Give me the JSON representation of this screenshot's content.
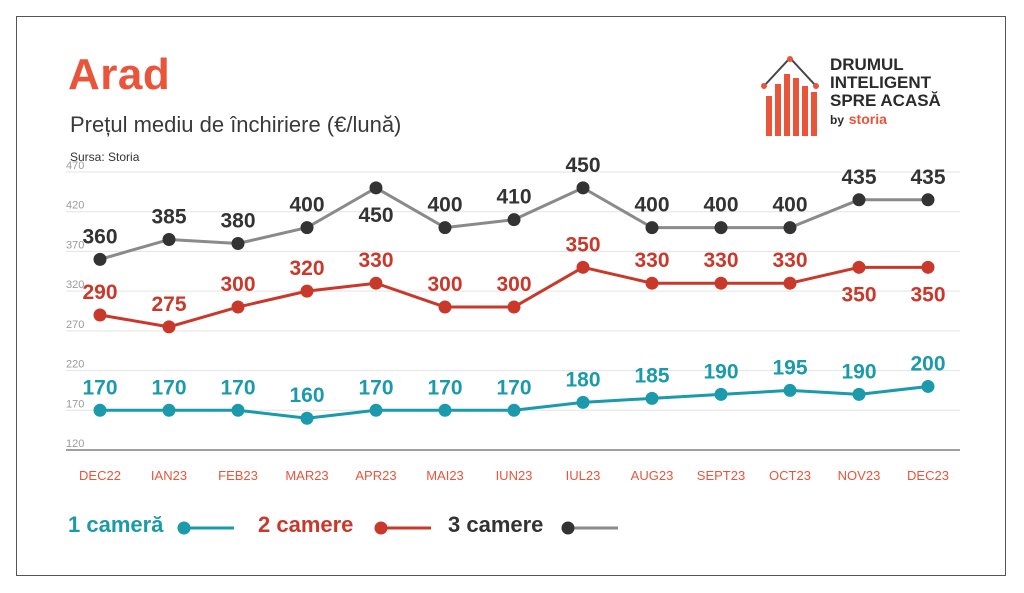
{
  "header": {
    "title": "Arad",
    "subtitle": "Prețul mediu de închiriere (€/lună)",
    "source": "Sursa: Storia"
  },
  "logo": {
    "line1": "DRUMUL",
    "line2": "INTELIGENT",
    "line3": "SPRE ACASĂ",
    "by": "by",
    "brand": "storia"
  },
  "colors": {
    "accent": "#e8553b",
    "series1": "#1a9aab",
    "series2": "#c9392b",
    "series3": "#8a8a8a",
    "series3_marker": "#333333",
    "grid": "#e3e3e3",
    "axis": "#666666"
  },
  "chart_data": {
    "type": "line",
    "categories": [
      "DEC22",
      "IAN23",
      "FEB23",
      "MAR23",
      "APR23",
      "MAI23",
      "IUN23",
      "IUL23",
      "AUG23",
      "SEPT23",
      "OCT23",
      "NOV23",
      "DEC23"
    ],
    "y_ticks": [
      120,
      170,
      220,
      270,
      320,
      370,
      420,
      470
    ],
    "ylim": [
      120,
      470
    ],
    "grid": true,
    "legend_position": "bottom",
    "series": [
      {
        "name": "1 cameră",
        "values": [
          170,
          170,
          170,
          160,
          170,
          170,
          170,
          180,
          185,
          190,
          195,
          190,
          200
        ]
      },
      {
        "name": "2 camere",
        "values": [
          290,
          275,
          300,
          320,
          330,
          300,
          300,
          350,
          330,
          330,
          330,
          350,
          350
        ]
      },
      {
        "name": "3 camere",
        "values": [
          360,
          385,
          380,
          400,
          450,
          400,
          410,
          450,
          400,
          400,
          400,
          435,
          435
        ]
      }
    ]
  }
}
